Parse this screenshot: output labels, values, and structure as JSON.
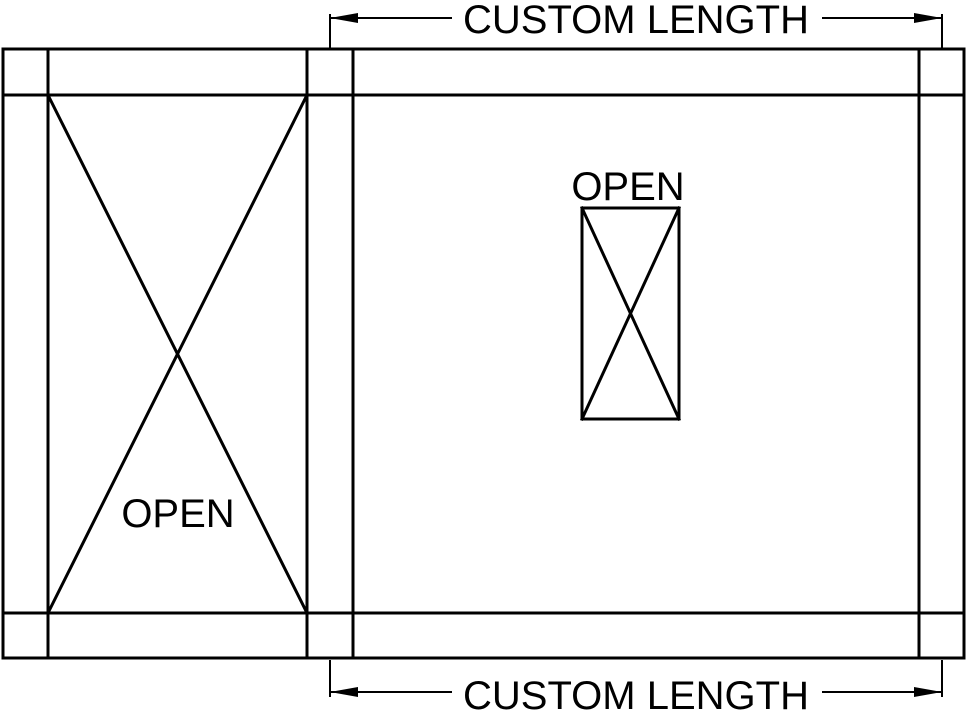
{
  "colors": {
    "line": "#000000",
    "background": "#ffffff"
  },
  "dimensions": {
    "top_label": "CUSTOM LENGTH",
    "bottom_label": "CUSTOM LENGTH"
  },
  "openings": {
    "left_label": "OPEN",
    "center_label": "OPEN"
  }
}
